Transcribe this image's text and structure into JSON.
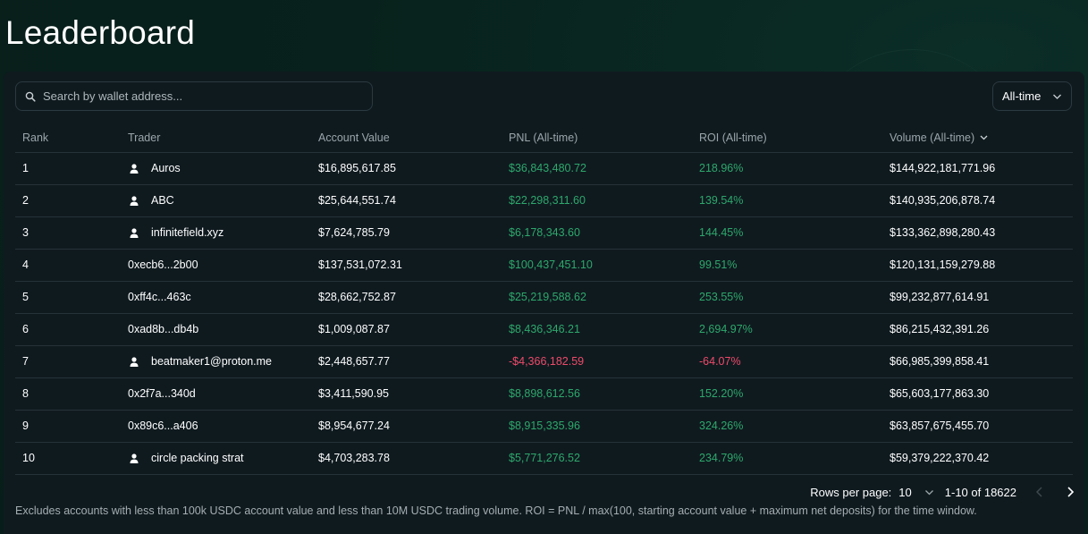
{
  "page": {
    "title": "Leaderboard"
  },
  "search": {
    "placeholder": "Search by wallet address..."
  },
  "filter": {
    "selected": "All-time"
  },
  "table": {
    "headers": {
      "rank": "Rank",
      "trader": "Trader",
      "account_value": "Account Value",
      "pnl": "PNL (All-time)",
      "roi": "ROI (All-time)",
      "volume": "Volume (All-time)"
    },
    "rows": [
      {
        "rank": "1",
        "trader": "Auros",
        "has_user_icon": true,
        "account_value": "$16,895,617.85",
        "pnl": "$36,843,480.72",
        "roi": "218.96%",
        "volume": "$144,922,181,771.96",
        "positive": true
      },
      {
        "rank": "2",
        "trader": "ABC",
        "has_user_icon": true,
        "account_value": "$25,644,551.74",
        "pnl": "$22,298,311.60",
        "roi": "139.54%",
        "volume": "$140,935,206,878.74",
        "positive": true
      },
      {
        "rank": "3",
        "trader": "infinitefield.xyz",
        "has_user_icon": true,
        "account_value": "$7,624,785.79",
        "pnl": "$6,178,343.60",
        "roi": "144.45%",
        "volume": "$133,362,898,280.43",
        "positive": true
      },
      {
        "rank": "4",
        "trader": "0xecb6...2b00",
        "has_user_icon": false,
        "account_value": "$137,531,072.31",
        "pnl": "$100,437,451.10",
        "roi": "99.51%",
        "volume": "$120,131,159,279.88",
        "positive": true
      },
      {
        "rank": "5",
        "trader": "0xff4c...463c",
        "has_user_icon": false,
        "account_value": "$28,662,752.87",
        "pnl": "$25,219,588.62",
        "roi": "253.55%",
        "volume": "$99,232,877,614.91",
        "positive": true
      },
      {
        "rank": "6",
        "trader": "0xad8b...db4b",
        "has_user_icon": false,
        "account_value": "$1,009,087.87",
        "pnl": "$8,436,346.21",
        "roi": "2,694.97%",
        "volume": "$86,215,432,391.26",
        "positive": true
      },
      {
        "rank": "7",
        "trader": "beatmaker1@proton.me",
        "has_user_icon": true,
        "account_value": "$2,448,657.77",
        "pnl": "-$4,366,182.59",
        "roi": "-64.07%",
        "volume": "$66,985,399,858.41",
        "positive": false
      },
      {
        "rank": "8",
        "trader": "0x2f7a...340d",
        "has_user_icon": false,
        "account_value": "$3,411,590.95",
        "pnl": "$8,898,612.56",
        "roi": "152.20%",
        "volume": "$65,603,177,863.30",
        "positive": true
      },
      {
        "rank": "9",
        "trader": "0x89c6...a406",
        "has_user_icon": false,
        "account_value": "$8,954,677.24",
        "pnl": "$8,915,335.96",
        "roi": "324.26%",
        "volume": "$63,857,675,455.70",
        "positive": true
      },
      {
        "rank": "10",
        "trader": "circle packing strat",
        "has_user_icon": true,
        "account_value": "$4,703,283.78",
        "pnl": "$5,771,276.52",
        "roi": "234.79%",
        "volume": "$59,379,222,370.42",
        "positive": true
      }
    ]
  },
  "pagination": {
    "rows_per_page_label": "Rows per page:",
    "rows_per_page": "10",
    "range": "1-10 of 18622"
  },
  "footnote": "Excludes accounts with less than 100k USDC account value and less than 10M USDC trading volume. ROI = PNL / max(100, starting account value + maximum net deposits) for the time window.",
  "colors": {
    "background": "#08211c",
    "panel": "#0f1a1f",
    "positive": "#2ea86c",
    "negative": "#ee4b6a"
  },
  "icons": {
    "search": "search-icon",
    "user": "user-icon",
    "chevron": "chevron-down-icon",
    "prev": "chevron-left-icon",
    "next": "chevron-right-icon"
  }
}
